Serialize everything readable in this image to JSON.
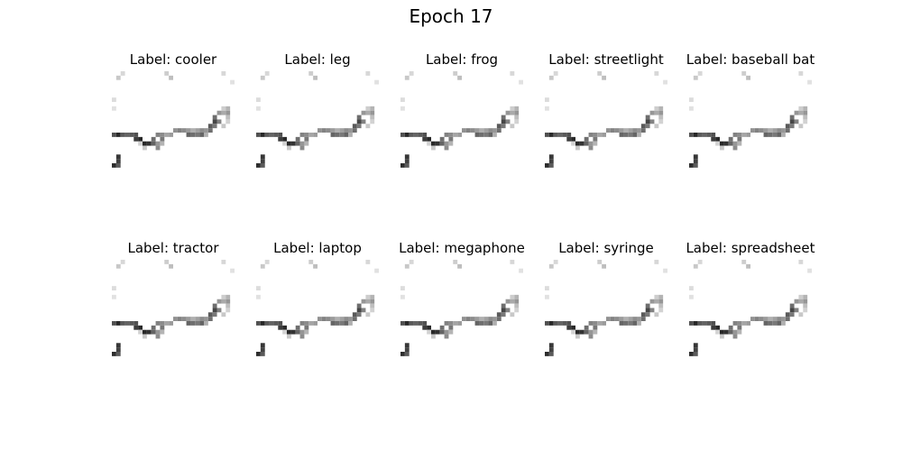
{
  "figure": {
    "title": "Epoch 17"
  },
  "panels": [
    {
      "label": "Label: cooler"
    },
    {
      "label": "Label: leg"
    },
    {
      "label": "Label: frog"
    },
    {
      "label": "Label: streetlight"
    },
    {
      "label": "Label: baseball bat"
    },
    {
      "label": "Label: tractor"
    },
    {
      "label": "Label: laptop"
    },
    {
      "label": "Label: megaphone"
    },
    {
      "label": "Label: syringe"
    },
    {
      "label": "Label: spreadsheet"
    }
  ]
}
